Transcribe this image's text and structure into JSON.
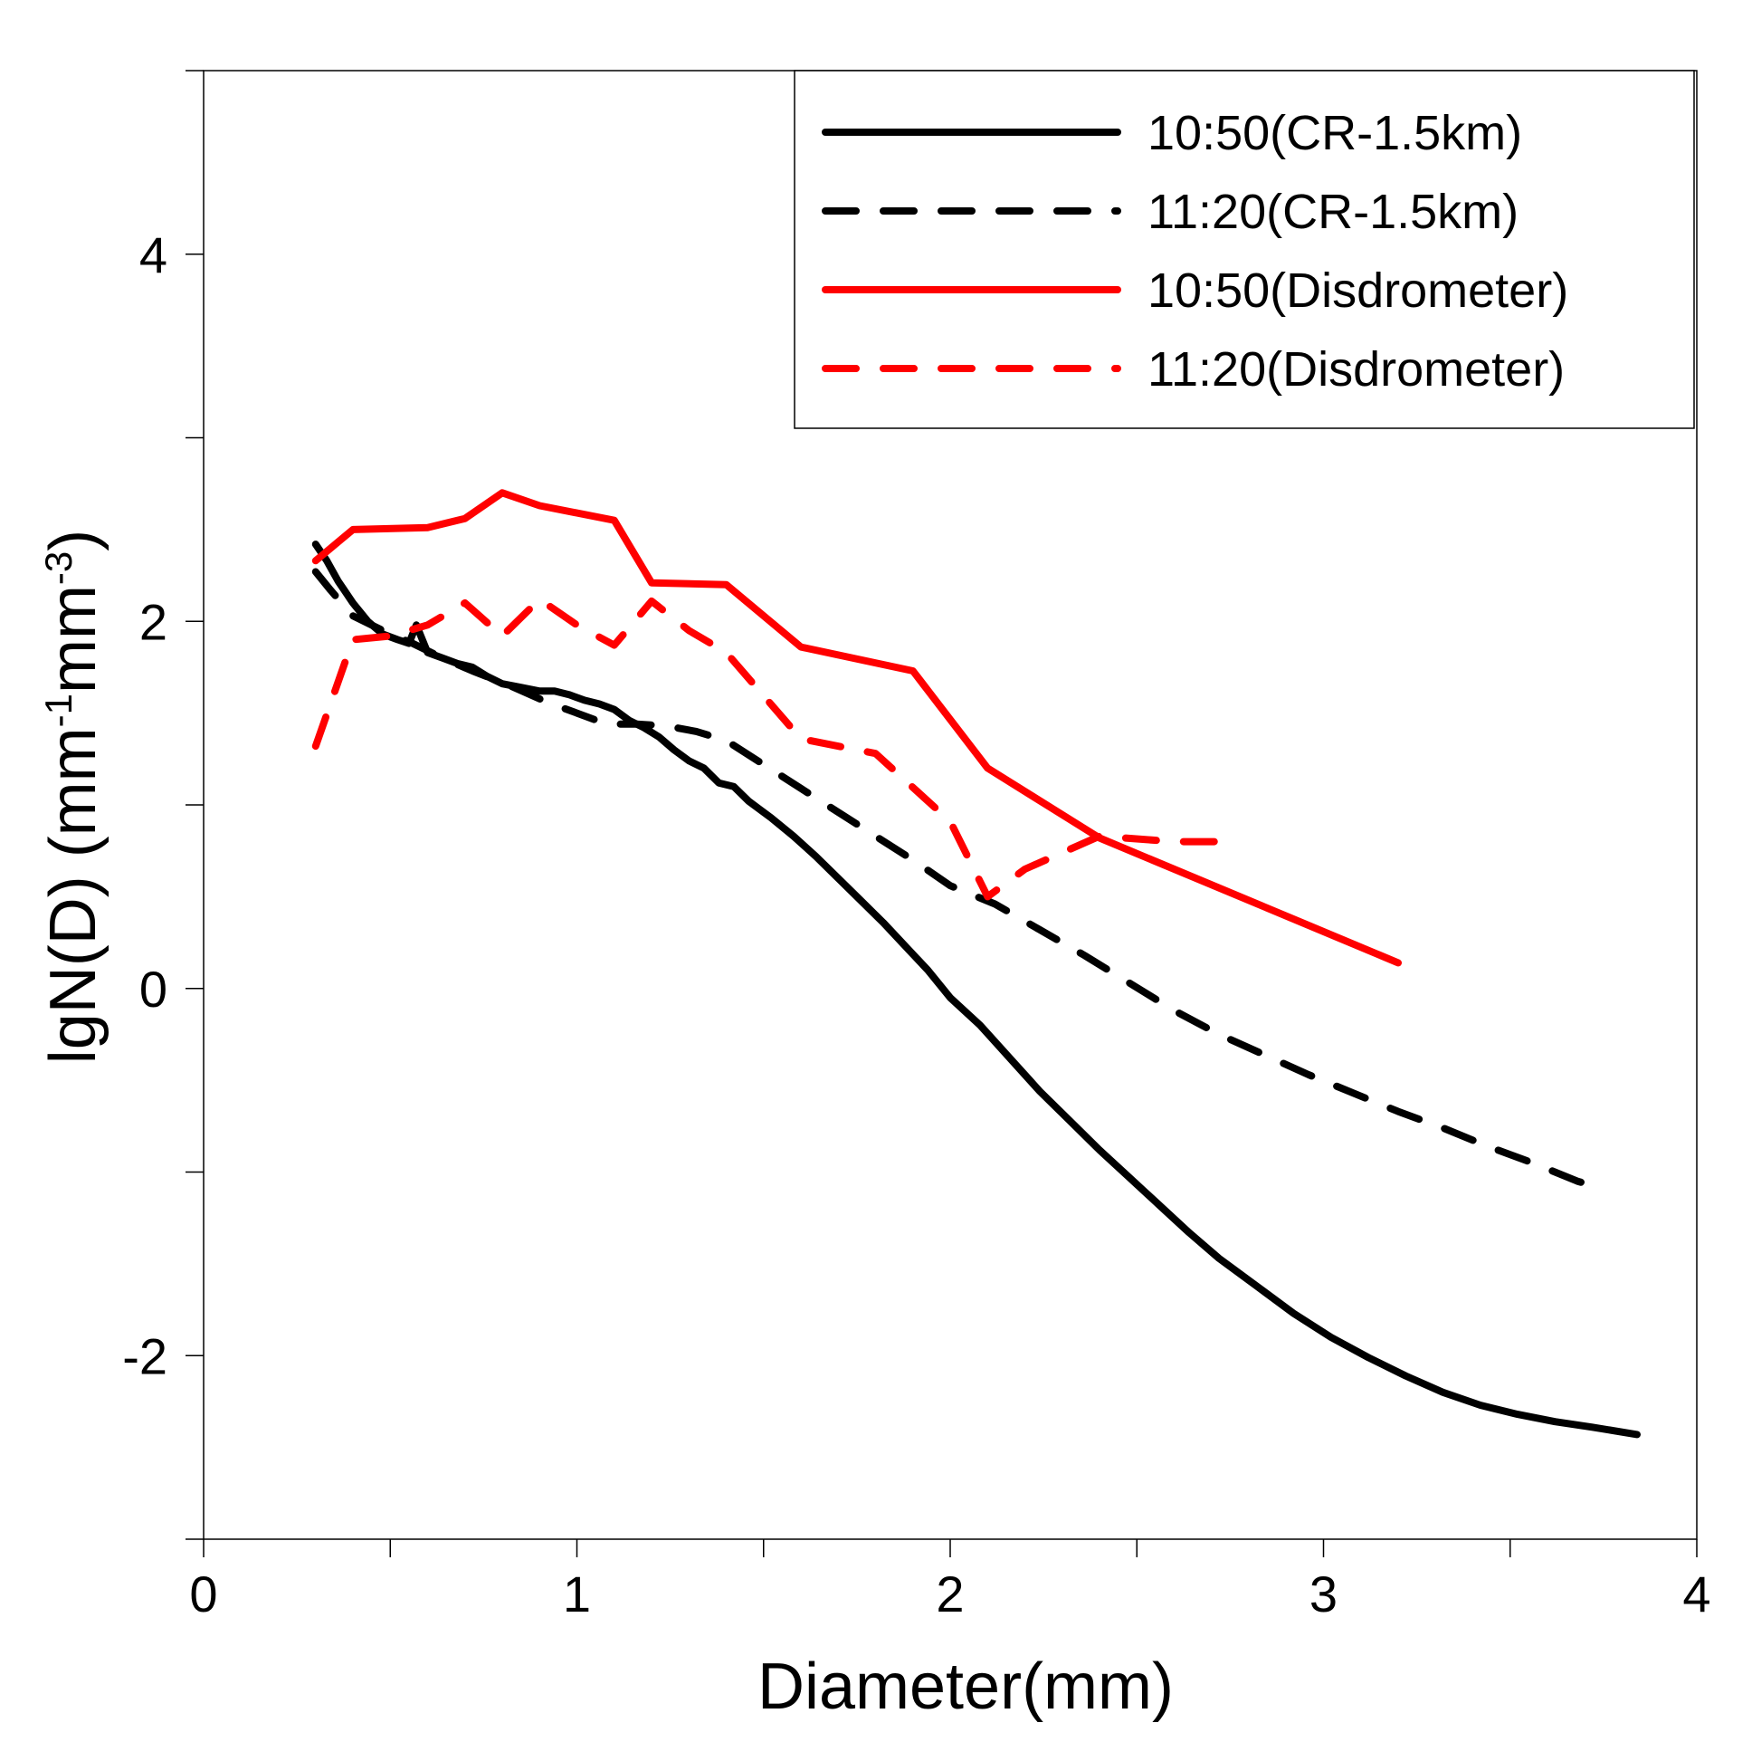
{
  "chart_data": {
    "type": "line",
    "title": "",
    "xlabel": "Diameter(mm)",
    "ylabel_main": "lgN(D) (mm",
    "ylabel_sup1": "-1",
    "ylabel_mid": "mm",
    "ylabel_sup2": "-3",
    "ylabel_end": ")",
    "xlim": [
      0,
      4
    ],
    "ylim": [
      -3,
      5
    ],
    "x_ticks": [
      0,
      1,
      2,
      3,
      4
    ],
    "x_tick_labels": [
      "0",
      "1",
      "2",
      "3",
      "4"
    ],
    "y_ticks": [
      -2,
      0,
      2,
      4
    ],
    "y_tick_labels": [
      "-2",
      "0",
      "2",
      "4"
    ],
    "legend_position": "top-right",
    "series": [
      {
        "name": "10:50(CR-1.5km)",
        "color": "#000000",
        "dash": "solid",
        "x": [
          0.3,
          0.33,
          0.36,
          0.4,
          0.44,
          0.48,
          0.52,
          0.55,
          0.57,
          0.6,
          0.64,
          0.68,
          0.72,
          0.76,
          0.8,
          0.85,
          0.9,
          0.94,
          0.98,
          1.02,
          1.06,
          1.1,
          1.14,
          1.18,
          1.22,
          1.26,
          1.3,
          1.34,
          1.38,
          1.42,
          1.46,
          1.52,
          1.58,
          1.64,
          1.7,
          1.76,
          1.82,
          1.88,
          1.94,
          2.0,
          2.08,
          2.16,
          2.24,
          2.32,
          2.4,
          2.48,
          2.56,
          2.64,
          2.72,
          2.82,
          2.92,
          3.02,
          3.12,
          3.22,
          3.32,
          3.42,
          3.52,
          3.62,
          3.72,
          3.84
        ],
        "y": [
          2.42,
          2.33,
          2.22,
          2.1,
          2.0,
          1.93,
          1.9,
          1.88,
          1.98,
          1.83,
          1.8,
          1.77,
          1.75,
          1.7,
          1.66,
          1.64,
          1.62,
          1.62,
          1.6,
          1.57,
          1.55,
          1.52,
          1.46,
          1.42,
          1.37,
          1.3,
          1.24,
          1.2,
          1.12,
          1.1,
          1.02,
          0.93,
          0.83,
          0.72,
          0.6,
          0.48,
          0.36,
          0.23,
          0.1,
          -0.05,
          -0.2,
          -0.38,
          -0.56,
          -0.72,
          -0.88,
          -1.03,
          -1.18,
          -1.33,
          -1.47,
          -1.62,
          -1.77,
          -1.9,
          -2.01,
          -2.11,
          -2.2,
          -2.27,
          -2.32,
          -2.36,
          -2.39,
          -2.43
        ]
      },
      {
        "name": "11:20(CR-1.5km)",
        "color": "#000000",
        "dash": "dash",
        "x": [
          0.3,
          0.34,
          0.4,
          0.48,
          0.56,
          0.64,
          0.72,
          0.82,
          0.92,
          1.0,
          1.08,
          1.16,
          1.24,
          1.32,
          1.4,
          1.5,
          1.6,
          1.7,
          1.8,
          1.9,
          2.0,
          2.12,
          2.24,
          2.36,
          2.48,
          2.6,
          2.72,
          2.84,
          2.96,
          3.08,
          3.2,
          3.32,
          3.44,
          3.56,
          3.68,
          3.75
        ],
        "y": [
          2.27,
          2.17,
          2.03,
          1.95,
          1.88,
          1.8,
          1.73,
          1.65,
          1.56,
          1.5,
          1.44,
          1.44,
          1.43,
          1.4,
          1.35,
          1.22,
          1.09,
          0.96,
          0.83,
          0.7,
          0.56,
          0.46,
          0.32,
          0.18,
          0.03,
          -0.12,
          -0.25,
          -0.36,
          -0.47,
          -0.57,
          -0.67,
          -0.76,
          -0.86,
          -0.95,
          -1.05,
          -1.09
        ]
      },
      {
        "name": "10:50(Disdrometer)",
        "color": "#ff0000",
        "dash": "solid",
        "x": [
          0.3,
          0.4,
          0.6,
          0.7,
          0.8,
          0.9,
          1.1,
          1.2,
          1.4,
          1.6,
          1.9,
          2.1,
          2.4,
          3.2
        ],
        "y": [
          2.33,
          2.5,
          2.51,
          2.56,
          2.7,
          2.63,
          2.55,
          2.21,
          2.2,
          1.86,
          1.73,
          1.2,
          0.82,
          0.14
        ]
      },
      {
        "name": "11:20(Disdrometer)",
        "color": "#ff0000",
        "dash": "dash",
        "x": [
          0.3,
          0.4,
          0.5,
          0.6,
          0.7,
          0.8,
          0.9,
          1.0,
          1.1,
          1.2,
          1.3,
          1.4,
          1.6,
          1.8,
          2.0,
          2.1,
          2.2,
          2.4,
          2.6,
          2.75
        ],
        "y": [
          1.32,
          1.9,
          1.92,
          1.98,
          2.1,
          1.92,
          2.12,
          1.98,
          1.87,
          2.11,
          1.95,
          1.83,
          1.36,
          1.28,
          0.91,
          0.5,
          0.65,
          0.83,
          0.8,
          0.8
        ]
      }
    ]
  }
}
